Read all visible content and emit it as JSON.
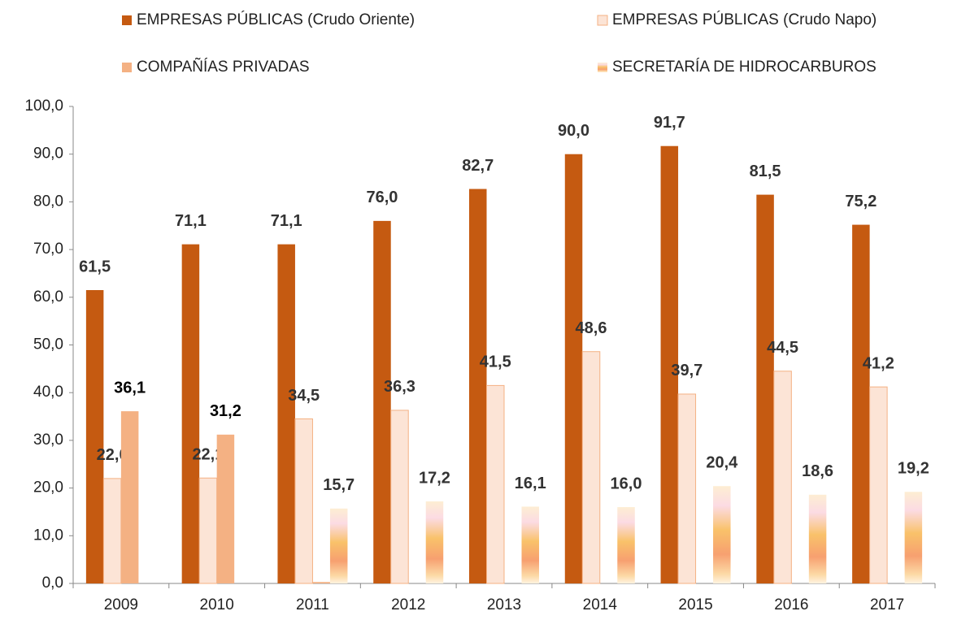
{
  "chart_data": {
    "type": "bar",
    "categories": [
      "2009",
      "2010",
      "2011",
      "2012",
      "2013",
      "2014",
      "2015",
      "2016",
      "2017"
    ],
    "series": [
      {
        "name": "EMPRESAS PÚBLICAS (Crudo Oriente)",
        "color": "#c55a11",
        "values": [
          61.5,
          71.1,
          71.1,
          76.0,
          82.7,
          90.0,
          91.7,
          81.5,
          75.2
        ],
        "value_labels": [
          "61,5",
          "71,1",
          "71,1",
          "76,0",
          "82,7",
          "90,0",
          "91,7",
          "81,5",
          "75,2"
        ]
      },
      {
        "name": "EMPRESAS PÚBLICAS (Crudo Napo)",
        "color": "#fce4d6",
        "values": [
          22.0,
          22.1,
          34.5,
          36.3,
          41.5,
          48.6,
          39.7,
          44.5,
          41.2
        ],
        "value_labels": [
          "22,0",
          "22,1",
          "34,5",
          "36,3",
          "41,5",
          "48,6",
          "39,7",
          "44,5",
          "41,2"
        ]
      },
      {
        "name": "COMPAÑÍAS PRIVADAS",
        "color": "#f4b183",
        "values": [
          36.1,
          31.2,
          0.3,
          null,
          null,
          null,
          null,
          null,
          null
        ],
        "value_labels": [
          "36,1",
          "31,2",
          null,
          null,
          null,
          null,
          null,
          null,
          null
        ]
      },
      {
        "name": "SECRETARÍA DE HIDROCARBUROS",
        "color": "#f7a86a",
        "values": [
          null,
          null,
          15.7,
          17.2,
          16.1,
          16.0,
          20.4,
          18.6,
          19.2
        ],
        "value_labels": [
          null,
          null,
          "15,7",
          "17,2",
          "16,1",
          "16,0",
          "20,4",
          "18,6",
          "19,2"
        ]
      }
    ],
    "ylim": [
      0,
      100
    ],
    "yticks": [
      {
        "value": 0,
        "label": "0,0"
      },
      {
        "value": 10,
        "label": "10,0"
      },
      {
        "value": 20,
        "label": "20,0"
      },
      {
        "value": 30,
        "label": "30,0"
      },
      {
        "value": 40,
        "label": "40,0"
      },
      {
        "value": 50,
        "label": "50,0"
      },
      {
        "value": 60,
        "label": "60,0"
      },
      {
        "value": 70,
        "label": "70,0"
      },
      {
        "value": 80,
        "label": "80,0"
      },
      {
        "value": 90,
        "label": "90,0"
      },
      {
        "value": 100,
        "label": "100,0"
      }
    ],
    "grid": false
  }
}
